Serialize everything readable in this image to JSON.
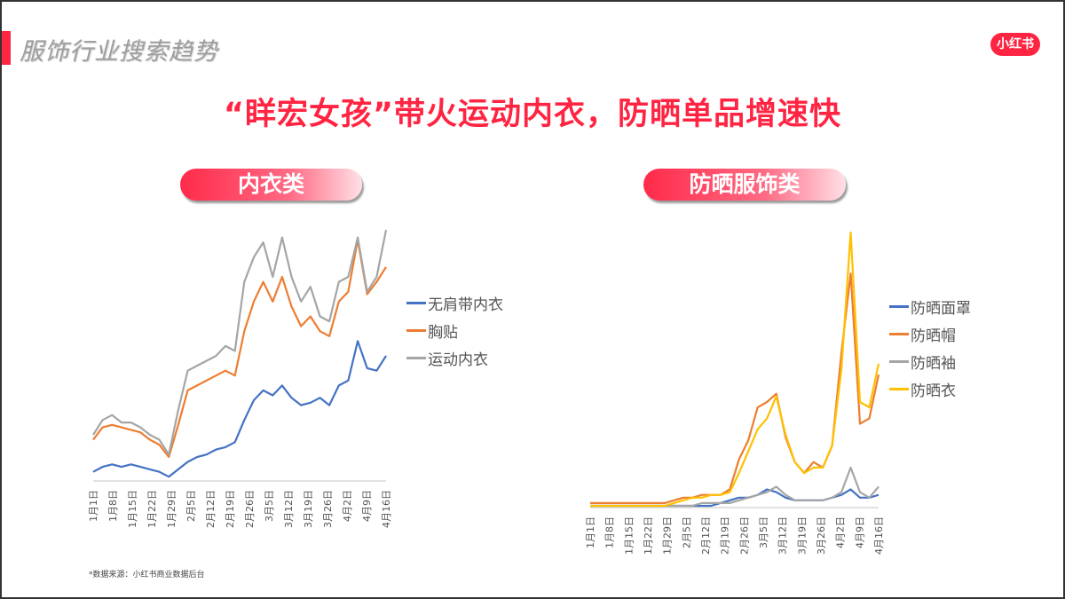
{
  "header": {
    "section_title": "服饰行业搜索趋势",
    "logo_text": "小红书",
    "headline": "“眻宏女孩”带火运动内衣，防晒单品增速快",
    "accent_color": "#ff2442"
  },
  "panels": {
    "left_label": "内衣类",
    "right_label": "防晒服饰类"
  },
  "footer": {
    "source": "*数据来源：小红书商业数据后台"
  },
  "chart_data": [
    {
      "type": "line",
      "title": "内衣类",
      "xlabel": "",
      "ylabel": "",
      "grid": false,
      "legend_position": "right",
      "x_tick_labels": [
        "1月1日",
        "1月8日",
        "1月15日",
        "1月22日",
        "1月29日",
        "2月5日",
        "2月12日",
        "2月19日",
        "2月26日",
        "3月5日",
        "3月12日",
        "3月19日",
        "3月26日",
        "4月2日",
        "4月9日",
        "4月16日"
      ],
      "x": [
        "1月1日",
        "1月4日",
        "1月8日",
        "1月11日",
        "1月15日",
        "1月18日",
        "1月22日",
        "1月25日",
        "1月29日",
        "2月1日",
        "2月5日",
        "2月8日",
        "2月12日",
        "2月15日",
        "2月19日",
        "2月22日",
        "2月26日",
        "3月1日",
        "3月5日",
        "3月8日",
        "3月12日",
        "3月15日",
        "3月19日",
        "3月22日",
        "3月26日",
        "3月29日",
        "4月2日",
        "4月5日",
        "4月9日",
        "4月12日",
        "4月16日",
        "4月19日"
      ],
      "ylim": [
        0,
        100
      ],
      "series": [
        {
          "name": "无肩带内衣",
          "color": "#4472c4",
          "values": [
            3,
            5,
            6,
            5,
            6,
            5,
            4,
            3,
            1,
            4,
            7,
            9,
            10,
            12,
            13,
            15,
            24,
            32,
            36,
            34,
            38,
            33,
            30,
            31,
            33,
            30,
            38,
            40,
            56,
            45,
            44,
            50
          ]
        },
        {
          "name": "胸贴",
          "color": "#ed7d31",
          "values": [
            16,
            21,
            22,
            21,
            20,
            19,
            16,
            14,
            9,
            22,
            36,
            38,
            40,
            42,
            44,
            42,
            60,
            72,
            80,
            72,
            82,
            70,
            62,
            66,
            60,
            58,
            72,
            76,
            97,
            75,
            80,
            86
          ]
        },
        {
          "name": "运动内衣",
          "color": "#a5a5a5",
          "values": [
            18,
            24,
            26,
            23,
            23,
            21,
            18,
            16,
            10,
            28,
            44,
            46,
            48,
            50,
            54,
            52,
            80,
            90,
            96,
            82,
            98,
            82,
            72,
            78,
            66,
            64,
            80,
            82,
            98,
            76,
            82,
            101
          ]
        }
      ]
    },
    {
      "type": "line",
      "title": "防晒服饰类",
      "xlabel": "",
      "ylabel": "",
      "grid": false,
      "legend_position": "right",
      "x_tick_labels": [
        "1月1日",
        "1月8日",
        "1月15日",
        "1月22日",
        "1月29日",
        "2月5日",
        "2月12日",
        "2月19日",
        "2月26日",
        "3月5日",
        "3月12日",
        "3月19日",
        "3月26日",
        "4月2日",
        "4月9日",
        "4月16日"
      ],
      "x": [
        "1月1日",
        "1月4日",
        "1月8日",
        "1月11日",
        "1月15日",
        "1月18日",
        "1月22日",
        "1月25日",
        "1月29日",
        "2月1日",
        "2月5日",
        "2月8日",
        "2月12日",
        "2月15日",
        "2月19日",
        "2月22日",
        "2月26日",
        "3月1日",
        "3月5日",
        "3月8日",
        "3月12日",
        "3月15日",
        "3月19日",
        "3月22日",
        "3月26日",
        "3月29日",
        "4月2日",
        "4月5日",
        "4月9日",
        "4月12日",
        "4月16日",
        "4月19日"
      ],
      "ylim": [
        0,
        100
      ],
      "series": [
        {
          "name": "防晒面罩",
          "color": "#4472c4",
          "values": [
            0,
            0,
            0,
            0,
            0,
            0,
            0,
            0,
            0,
            0,
            0,
            0,
            0,
            0,
            1,
            2,
            3,
            3,
            4,
            6,
            5,
            3,
            2,
            2,
            2,
            2,
            3,
            4,
            6,
            3,
            3,
            4
          ]
        },
        {
          "name": "防晒帽",
          "color": "#ed7d31",
          "values": [
            1,
            1,
            1,
            1,
            1,
            1,
            1,
            1,
            1,
            2,
            3,
            3,
            4,
            4,
            4,
            6,
            17,
            24,
            36,
            38,
            41,
            25,
            16,
            12,
            16,
            14,
            22,
            56,
            85,
            30,
            32,
            48
          ]
        },
        {
          "name": "防晒袖",
          "color": "#a5a5a5",
          "values": [
            0,
            0,
            0,
            0,
            0,
            0,
            0,
            0,
            0,
            0,
            0,
            0,
            1,
            1,
            1,
            1,
            2,
            3,
            4,
            5,
            7,
            4,
            2,
            2,
            2,
            2,
            3,
            5,
            14,
            5,
            3,
            7
          ]
        },
        {
          "name": "防晒衣",
          "color": "#ffc000",
          "values": [
            0,
            0,
            0,
            0,
            0,
            0,
            0,
            0,
            0,
            1,
            2,
            3,
            3,
            4,
            4,
            5,
            12,
            20,
            28,
            32,
            40,
            26,
            16,
            12,
            14,
            14,
            22,
            50,
            100,
            38,
            36,
            52
          ]
        }
      ]
    }
  ]
}
